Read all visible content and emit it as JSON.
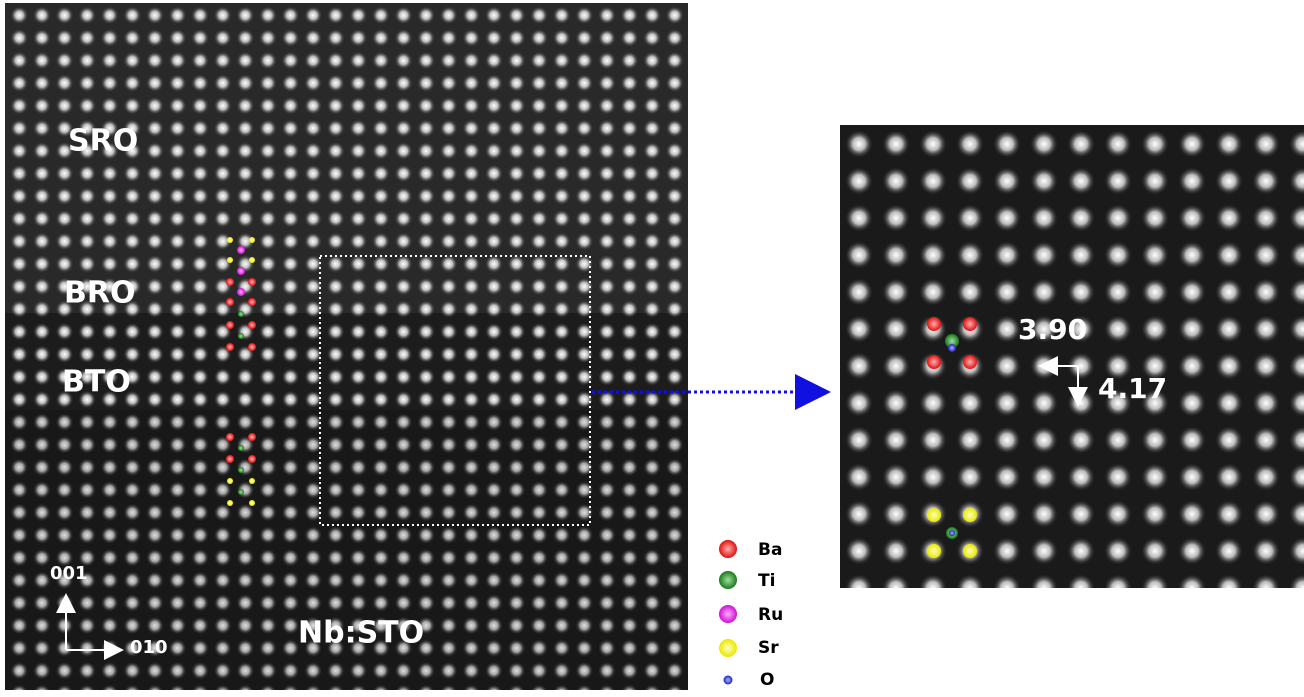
{
  "left_image": {
    "layers": [
      "SRO",
      "BRO",
      "BTO",
      "Nb:STO"
    ],
    "axes": [
      "001",
      "010"
    ]
  },
  "right_image": {
    "measurements": [
      "3.90",
      "4.17"
    ]
  },
  "legend": [
    "Ba",
    "Ti",
    "Ru",
    "Sr",
    "O"
  ]
}
